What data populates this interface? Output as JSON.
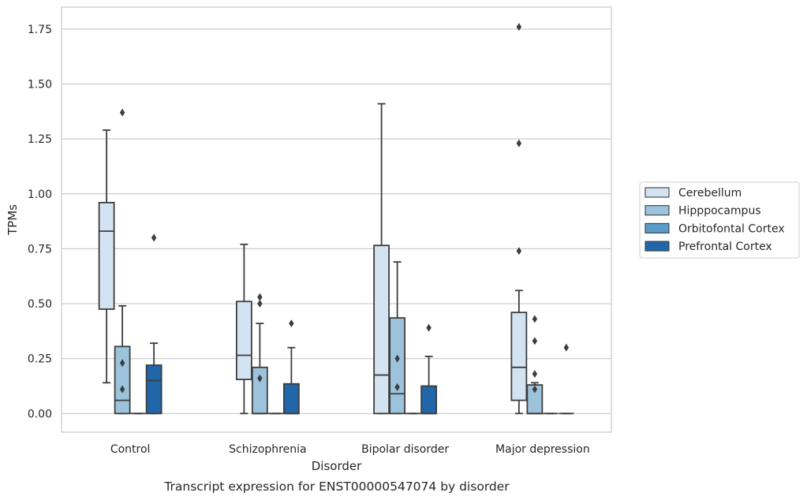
{
  "chart_data": {
    "type": "boxplot",
    "title": "",
    "caption": "Transcript expression for ENST00000547074 by disorder",
    "xlabel": "Disorder",
    "ylabel": "TPMs",
    "ylim": [
      -0.085,
      1.85
    ],
    "yticks": [
      "0.00",
      "0.25",
      "0.50",
      "0.75",
      "1.00",
      "1.25",
      "1.50",
      "1.75"
    ],
    "ytick_values": [
      0,
      0.25,
      0.5,
      0.75,
      1.0,
      1.25,
      1.5,
      1.75
    ],
    "grid": true,
    "legend_position": "right",
    "categories": [
      "Control",
      "Schizophrenia",
      "Bipolar disorder",
      "Major depression"
    ],
    "series": [
      {
        "name": "Cerebellum",
        "color": "#d4e3f2",
        "boxes": [
          {
            "q1": 0.475,
            "median": 0.83,
            "q3": 0.96,
            "whislo": 0.14,
            "whishi": 1.29,
            "fliers": []
          },
          {
            "q1": 0.155,
            "median": 0.265,
            "q3": 0.51,
            "whislo": 0.0,
            "whishi": 0.77,
            "fliers": []
          },
          {
            "q1": 0.0,
            "median": 0.175,
            "q3": 0.765,
            "whislo": 0.0,
            "whishi": 1.41,
            "fliers": []
          },
          {
            "q1": 0.06,
            "median": 0.21,
            "q3": 0.46,
            "whislo": 0.0,
            "whishi": 0.56,
            "fliers": [
              1.76,
              1.23,
              0.74
            ]
          }
        ]
      },
      {
        "name": "Hipppocampus",
        "color": "#9cc3db",
        "boxes": [
          {
            "q1": 0.0,
            "median": 0.06,
            "q3": 0.305,
            "whislo": 0.0,
            "whishi": 0.49,
            "fliers": [
              1.37,
              0.23,
              0.11
            ]
          },
          {
            "q1": 0.0,
            "median": 0.0,
            "q3": 0.21,
            "whislo": 0.0,
            "whishi": 0.41,
            "fliers": [
              0.53,
              0.5,
              0.16
            ]
          },
          {
            "q1": 0.0,
            "median": 0.09,
            "q3": 0.435,
            "whislo": 0.0,
            "whishi": 0.69,
            "fliers": [
              0.25,
              0.12
            ]
          },
          {
            "q1": 0.0,
            "median": 0.0,
            "q3": 0.13,
            "whislo": 0.0,
            "whishi": 0.14,
            "fliers": [
              0.43,
              0.33,
              0.18,
              0.11
            ]
          }
        ]
      },
      {
        "name": "Orbitofontal Cortex",
        "color": "#5b9bc9",
        "boxes": [
          {
            "q1": 0.0,
            "median": 0.0,
            "q3": 0.0,
            "whislo": 0.0,
            "whishi": 0.0,
            "fliers": []
          },
          {
            "q1": 0.0,
            "median": 0.0,
            "q3": 0.0,
            "whislo": 0.0,
            "whishi": 0.0,
            "fliers": []
          },
          {
            "q1": 0.0,
            "median": 0.0,
            "q3": 0.0,
            "whislo": 0.0,
            "whishi": 0.0,
            "fliers": []
          },
          {
            "q1": 0.0,
            "median": 0.0,
            "q3": 0.0,
            "whislo": 0.0,
            "whishi": 0.0,
            "fliers": []
          }
        ]
      },
      {
        "name": "Prefrontal Cortex",
        "color": "#2066a8",
        "boxes": [
          {
            "q1": 0.0,
            "median": 0.15,
            "q3": 0.22,
            "whislo": 0.0,
            "whishi": 0.32,
            "fliers": [
              0.8
            ]
          },
          {
            "q1": 0.0,
            "median": 0.0,
            "q3": 0.135,
            "whislo": 0.0,
            "whishi": 0.3,
            "fliers": [
              0.41
            ]
          },
          {
            "q1": 0.0,
            "median": 0.0,
            "q3": 0.125,
            "whislo": 0.0,
            "whishi": 0.26,
            "fliers": [
              0.39
            ]
          },
          {
            "q1": 0.0,
            "median": 0.0,
            "q3": 0.0,
            "whislo": 0.0,
            "whishi": 0.0,
            "fliers": [
              0.3
            ]
          }
        ]
      }
    ]
  }
}
